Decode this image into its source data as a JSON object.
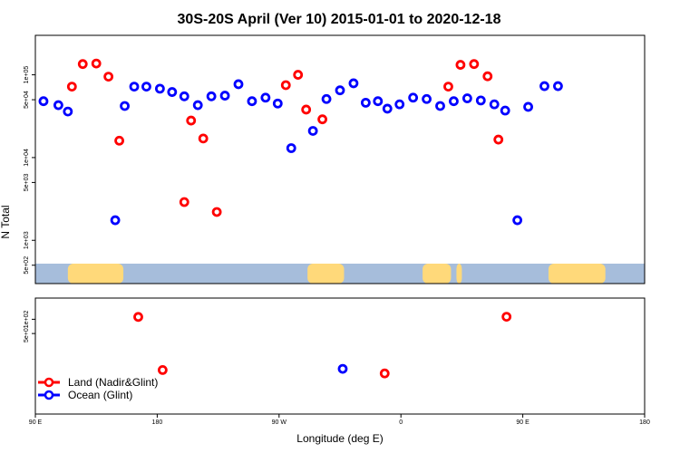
{
  "chart_data": [
    {
      "type": "scatter",
      "panel": "top",
      "title": "30S-20S April (Ver 10)   2015-01-01 to 2020-12-18",
      "ylabel": "N Total",
      "yscale": "log",
      "ylim": [
        300,
        300000
      ],
      "yticks": [
        {
          "v": 500,
          "label": "5e+02"
        },
        {
          "v": 1000,
          "label": "1e+03"
        },
        {
          "v": 5000,
          "label": "5e+03"
        },
        {
          "v": 10000,
          "label": "1e+04"
        },
        {
          "v": 50000,
          "label": "5e+04"
        },
        {
          "v": 100000,
          "label": "1e+05"
        }
      ],
      "x_unit": "deg E (unwrapped)",
      "xlim": [
        90,
        540
      ],
      "series": [
        {
          "name": "Land (Nadir&Glint)",
          "color": "#ff0000",
          "points": [
            [
              117,
              72000
            ],
            [
              125,
              135000
            ],
            [
              135,
              137000
            ],
            [
              144,
              95000
            ],
            [
              152,
              16000
            ],
            [
              200,
              2900
            ],
            [
              205,
              28000
            ],
            [
              214,
              17000
            ],
            [
              224,
              2200
            ],
            [
              275,
              75000
            ],
            [
              284,
              100000
            ],
            [
              290,
              38000
            ],
            [
              302,
              29000
            ],
            [
              395,
              72000
            ],
            [
              404,
              132000
            ],
            [
              414,
              135000
            ],
            [
              424,
              96000
            ],
            [
              432,
              16500
            ]
          ]
        },
        {
          "name": "Ocean (Glint)",
          "color": "#0000ff",
          "points": [
            [
              96,
              48000
            ],
            [
              107,
              43000
            ],
            [
              114,
              36000
            ],
            [
              149,
              1750
            ],
            [
              156,
              42000
            ],
            [
              163,
              72000
            ],
            [
              172,
              72000
            ],
            [
              182,
              68000
            ],
            [
              191,
              62000
            ],
            [
              200,
              55000
            ],
            [
              210,
              43000
            ],
            [
              220,
              55000
            ],
            [
              230,
              56000
            ],
            [
              240,
              77000
            ],
            [
              250,
              48000
            ],
            [
              260,
              53000
            ],
            [
              269,
              45000
            ],
            [
              279,
              13000
            ],
            [
              295,
              21000
            ],
            [
              305,
              51000
            ],
            [
              315,
              65000
            ],
            [
              325,
              79000
            ],
            [
              334,
              46000
            ],
            [
              343,
              48000
            ],
            [
              350,
              39000
            ],
            [
              359,
              44000
            ],
            [
              369,
              53000
            ],
            [
              379,
              51000
            ],
            [
              389,
              42000
            ],
            [
              399,
              48000
            ],
            [
              409,
              52000
            ],
            [
              419,
              49000
            ],
            [
              429,
              44000
            ],
            [
              437,
              37000
            ],
            [
              446,
              1750
            ],
            [
              454,
              41000
            ],
            [
              466,
              73000
            ],
            [
              476,
              73000
            ]
          ]
        }
      ]
    },
    {
      "type": "scatter",
      "panel": "bottom",
      "yscale": "log",
      "ylim": [
        1,
        280
      ],
      "yticks": [
        {
          "v": 50,
          "label": "5e+01"
        },
        {
          "v": 100,
          "label": "1e+02"
        }
      ],
      "xlabel": "Longitude (deg E)",
      "xlim": [
        90,
        540
      ],
      "xticks": [
        {
          "v": 90,
          "label": "90 E"
        },
        {
          "v": 180,
          "label": "180"
        },
        {
          "v": 270,
          "label": "90 W"
        },
        {
          "v": 360,
          "label": "0"
        },
        {
          "v": 450,
          "label": "90 E"
        },
        {
          "v": 540,
          "label": "180"
        }
      ],
      "series": [
        {
          "name": "Land (Nadir&Glint)",
          "color": "#ff0000",
          "points": [
            [
              166,
              112
            ],
            [
              184,
              8.5
            ],
            [
              438,
              113
            ],
            [
              348,
              7.2
            ]
          ]
        },
        {
          "name": "Ocean (Glint)",
          "color": "#0000ff",
          "points": [
            [
              317,
              9
            ]
          ]
        }
      ]
    }
  ],
  "legend": {
    "placement": "bottom-left",
    "entries": [
      {
        "label": "Land (Nadir&Glint)",
        "color": "#ff0000"
      },
      {
        "label": "Ocean (Glint)",
        "color": "#0000ff"
      }
    ]
  },
  "map_strip": {
    "ocean_color": "#a6bddb",
    "land_color": "#ffd97a",
    "land_segments_deg": [
      [
        114,
        155
      ],
      [
        291,
        318
      ],
      [
        376,
        397
      ],
      [
        401,
        405
      ],
      [
        469,
        511
      ]
    ]
  }
}
